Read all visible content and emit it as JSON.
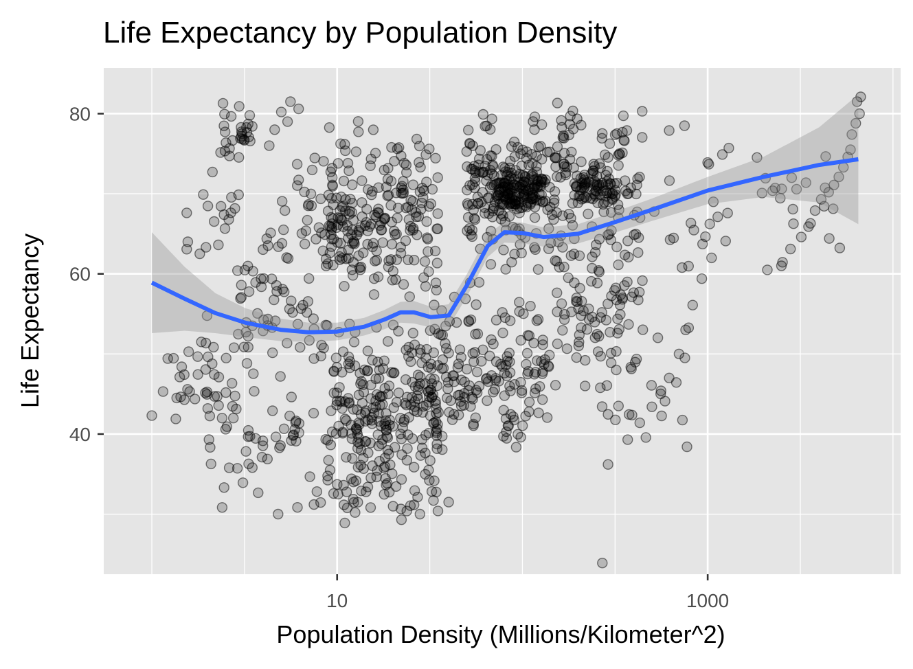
{
  "chart_data": {
    "type": "scatter",
    "title": "Life Expectancy by Population Density",
    "xlabel": "Population Density (Millions/Kilometer^2)",
    "ylabel": "Life Expectancy",
    "x_scale": "log10",
    "xlim": [
      0.55,
      11000
    ],
    "ylim": [
      22.5,
      85.7
    ],
    "x_ticks": [
      10,
      1000
    ],
    "x_tick_labels": [
      "10",
      "1000"
    ],
    "y_ticks": [
      40,
      60,
      80
    ],
    "y_tick_labels": [
      "40",
      "60",
      "80"
    ],
    "grid": true,
    "legend": "none",
    "colors": {
      "panel": "#e5e5e5",
      "grid": "#ffffff",
      "points": "#000000",
      "smooth_line": "#3366ff",
      "ribbon": "#999999"
    },
    "smooth": {
      "x": [
        1.0,
        1.5,
        2.2,
        3.2,
        5,
        7,
        10,
        14,
        18,
        22,
        26,
        32,
        40,
        50,
        65,
        80,
        100,
        130,
        200,
        320,
        500,
        1000,
        2000,
        4000,
        6500
      ],
      "y": [
        58.9,
        56.9,
        55.1,
        53.9,
        53.0,
        52.7,
        52.8,
        53.4,
        54.3,
        55.2,
        55.2,
        54.6,
        54.8,
        58.5,
        63.5,
        65.2,
        65.1,
        64.6,
        65.0,
        66.5,
        68.0,
        70.4,
        72.1,
        73.6,
        74.3
      ],
      "lower": [
        52.6,
        52.9,
        52.6,
        52.1,
        51.6,
        51.5,
        51.7,
        52.3,
        53.1,
        53.9,
        53.8,
        53.3,
        53.4,
        57.1,
        62.1,
        63.9,
        63.8,
        63.4,
        63.8,
        65.2,
        66.6,
        68.7,
        69.6,
        68.9,
        66.2
      ],
      "upper": [
        65.2,
        60.9,
        57.6,
        55.7,
        54.4,
        53.9,
        53.9,
        54.5,
        55.5,
        56.5,
        56.6,
        55.9,
        56.2,
        59.9,
        64.9,
        66.5,
        66.4,
        65.8,
        66.2,
        67.8,
        69.4,
        72.1,
        74.6,
        78.3,
        82.4
      ]
    },
    "clusters": [
      {
        "x": [
          1.2,
          3.0
        ],
        "y": [
          40,
          55
        ],
        "n": 28
      },
      {
        "x": [
          1.5,
          3.0
        ],
        "y": [
          60,
          74
        ],
        "n": 18
      },
      {
        "x": [
          2.3,
          3.5
        ],
        "y": [
          72,
          82
        ],
        "n": 28
      },
      {
        "x": [
          2.0,
          9.0
        ],
        "y": [
          30,
          50
        ],
        "n": 60
      },
      {
        "x": [
          3.0,
          9.0
        ],
        "y": [
          45,
          66
        ],
        "n": 60
      },
      {
        "x": [
          5.0,
          12.0
        ],
        "y": [
          58,
          76
        ],
        "n": 45
      },
      {
        "x": [
          9.0,
          35.0
        ],
        "y": [
          28,
          55
        ],
        "n": 260
      },
      {
        "x": [
          9.0,
          35.0
        ],
        "y": [
          55,
          80
        ],
        "n": 200
      },
      {
        "x": [
          30.0,
          140.0
        ],
        "y": [
          36,
          60
        ],
        "n": 170
      },
      {
        "x": [
          50.0,
          150.0
        ],
        "y": [
          60,
          81
        ],
        "n": 180
      },
      {
        "x": [
          70.0,
          130.0
        ],
        "y": [
          68,
          73
        ],
        "n": 110
      },
      {
        "x": [
          150.0,
          450.0
        ],
        "y": [
          44,
          66
        ],
        "n": 90
      },
      {
        "x": [
          150.0,
          450.0
        ],
        "y": [
          62,
          82
        ],
        "n": 110
      },
      {
        "x": [
          190.0,
          320.0
        ],
        "y": [
          68,
          73
        ],
        "n": 50
      },
      {
        "x": [
          250.0,
          800.0
        ],
        "y": [
          36,
          60
        ],
        "n": 22
      },
      {
        "x": [
          400.0,
          1300.0
        ],
        "y": [
          60,
          76
        ],
        "n": 18
      },
      {
        "x": [
          1800.0,
          5500.0
        ],
        "y": [
          60,
          78
        ],
        "n": 20
      }
    ],
    "points": [
      {
        "x": 5.6,
        "y": 81.5
      },
      {
        "x": 6.2,
        "y": 80.6
      },
      {
        "x": 5.0,
        "y": 80.2
      },
      {
        "x": 5.4,
        "y": 79.0
      },
      {
        "x": 4.6,
        "y": 78.0
      },
      {
        "x": 4.3,
        "y": 76.0
      },
      {
        "x": 1.0,
        "y": 42.3
      },
      {
        "x": 1.15,
        "y": 45.3
      },
      {
        "x": 1.6,
        "y": 45.3
      },
      {
        "x": 1.45,
        "y": 48.4
      },
      {
        "x": 1.85,
        "y": 51.5
      },
      {
        "x": 2.5,
        "y": 40.6
      },
      {
        "x": 2.9,
        "y": 60.4
      },
      {
        "x": 270,
        "y": 23.9
      },
      {
        "x": 290,
        "y": 36.2
      },
      {
        "x": 330,
        "y": 43.5
      },
      {
        "x": 370,
        "y": 39.3
      },
      {
        "x": 430,
        "y": 41.4
      },
      {
        "x": 500,
        "y": 43.4
      },
      {
        "x": 560,
        "y": 45.4
      },
      {
        "x": 620,
        "y": 47.0
      },
      {
        "x": 700,
        "y": 50.0
      },
      {
        "x": 760,
        "y": 53.0
      },
      {
        "x": 830,
        "y": 56.1
      },
      {
        "x": 930,
        "y": 59.4
      },
      {
        "x": 1050,
        "y": 62.0
      },
      {
        "x": 1250,
        "y": 64.1
      },
      {
        "x": 2100,
        "y": 60.5
      },
      {
        "x": 2500,
        "y": 61.0
      },
      {
        "x": 2800,
        "y": 63.1
      },
      {
        "x": 3200,
        "y": 64.6
      },
      {
        "x": 3500,
        "y": 65.9
      },
      {
        "x": 3800,
        "y": 67.9
      },
      {
        "x": 4100,
        "y": 69.3
      },
      {
        "x": 4500,
        "y": 70.2
      },
      {
        "x": 4800,
        "y": 71.1
      },
      {
        "x": 5100,
        "y": 72.1
      },
      {
        "x": 5400,
        "y": 73.3
      },
      {
        "x": 5700,
        "y": 74.6
      },
      {
        "x": 5900,
        "y": 75.5
      },
      {
        "x": 6000,
        "y": 77.4
      },
      {
        "x": 6300,
        "y": 78.8
      },
      {
        "x": 6600,
        "y": 80.0
      },
      {
        "x": 6400,
        "y": 81.5
      },
      {
        "x": 6700,
        "y": 82.1
      },
      {
        "x": 1300,
        "y": 75.7
      },
      {
        "x": 1200,
        "y": 74.9
      },
      {
        "x": 1000,
        "y": 73.9
      },
      {
        "x": 750,
        "y": 78.5
      },
      {
        "x": 620,
        "y": 77.9
      },
      {
        "x": 11,
        "y": 28.9
      },
      {
        "x": 12.5,
        "y": 30.2
      },
      {
        "x": 28,
        "y": 30.0
      },
      {
        "x": 35,
        "y": 30.4
      },
      {
        "x": 40,
        "y": 31.5
      },
      {
        "x": 7.5,
        "y": 31.2
      },
      {
        "x": 4.8,
        "y": 30.0
      }
    ]
  }
}
